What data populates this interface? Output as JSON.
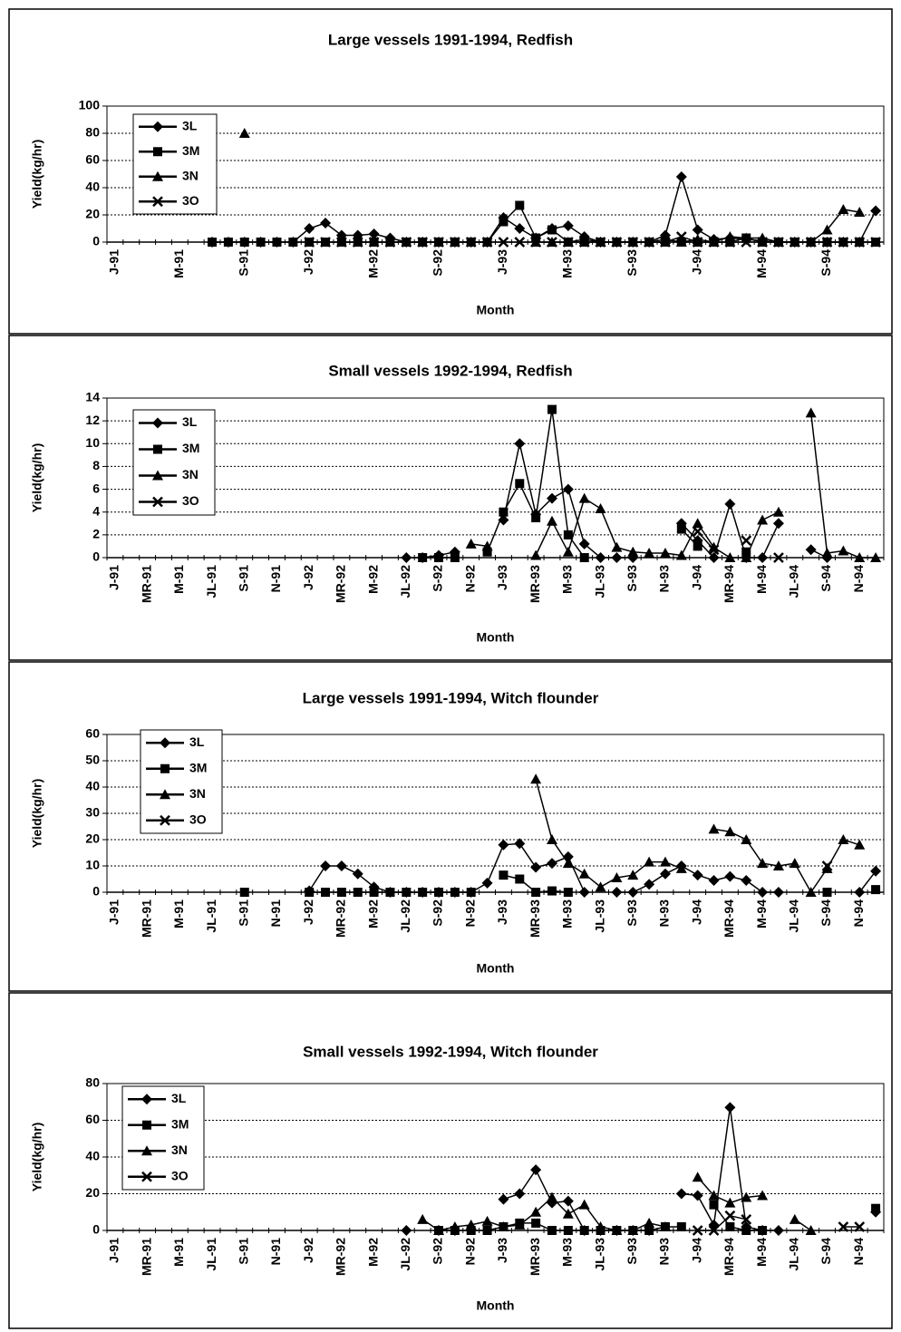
{
  "chart_data": [
    {
      "type": "line",
      "title": "Large vessels 1991-1994, Redfish",
      "x_label": "Month",
      "y_label": "Yield(kg/hr)",
      "categories": [
        "J-91",
        null,
        null,
        null,
        "M-91",
        null,
        null,
        null,
        "S-91",
        null,
        null,
        null,
        "J-92",
        null,
        null,
        null,
        "M-92",
        null,
        null,
        null,
        "S-92",
        null,
        null,
        null,
        "J-93",
        null,
        null,
        null,
        "M-93",
        null,
        null,
        null,
        "S-93",
        null,
        null,
        null,
        "J-94",
        null,
        null,
        null,
        "M-94",
        null,
        null,
        null,
        "S-94",
        null,
        null,
        null
      ],
      "ylim": [
        0,
        100
      ],
      "yticks": [
        0,
        20,
        40,
        60,
        80,
        100
      ],
      "grid": true,
      "legend": "upper left",
      "series": [
        {
          "name": "3L",
          "color": "#000000",
          "values": [
            null,
            null,
            null,
            null,
            null,
            null,
            0,
            0,
            0,
            0,
            0,
            0,
            10,
            14,
            5,
            5,
            6,
            3,
            0,
            0,
            0,
            0,
            0,
            0,
            18,
            10,
            3,
            10,
            12,
            4,
            0,
            0,
            0,
            0,
            5,
            48,
            9,
            2,
            3,
            2,
            1,
            0,
            0,
            0,
            0,
            0,
            0,
            23
          ]
        },
        {
          "name": "3M",
          "color": "#000000",
          "values": [
            null,
            null,
            null,
            null,
            null,
            null,
            0,
            0,
            0,
            0,
            0,
            0,
            0,
            0,
            0,
            0,
            0,
            0,
            0,
            0,
            0,
            0,
            0,
            0,
            15,
            27,
            3,
            9,
            0,
            0,
            0,
            0,
            0,
            0,
            0,
            0,
            0,
            0,
            0,
            3,
            0,
            0,
            0,
            0,
            0,
            0,
            0,
            0
          ]
        },
        {
          "name": "3N",
          "color": "#000000",
          "values": [
            null,
            null,
            null,
            null,
            null,
            null,
            null,
            null,
            80,
            null,
            null,
            null,
            null,
            null,
            null,
            null,
            null,
            null,
            null,
            null,
            null,
            null,
            null,
            null,
            null,
            null,
            0,
            0,
            0,
            2,
            0,
            0,
            0,
            0,
            2,
            0,
            2,
            0,
            4,
            3,
            3,
            0,
            0,
            0,
            9,
            24,
            22,
            null
          ]
        },
        {
          "name": "3O",
          "color": "#000000",
          "values": [
            null,
            null,
            null,
            null,
            null,
            null,
            null,
            null,
            null,
            null,
            null,
            null,
            0,
            0,
            0,
            0,
            0,
            0,
            0,
            0,
            0,
            0,
            0,
            0,
            0,
            0,
            0,
            0,
            0,
            0,
            0,
            0,
            0,
            0,
            0,
            4,
            0,
            0,
            0,
            0,
            0,
            0,
            0,
            0,
            0,
            0,
            0,
            0
          ]
        }
      ]
    },
    {
      "type": "line",
      "title": "Small vessels 1992-1994, Redfish",
      "x_label": "Month",
      "y_label": "Yield(kg/hr)",
      "categories": [
        "J-91",
        null,
        "MR-91",
        null,
        "M-91",
        null,
        "JL-91",
        null,
        "S-91",
        null,
        "N-91",
        null,
        "J-92",
        null,
        "MR-92",
        null,
        "M-92",
        null,
        "JL-92",
        null,
        "S-92",
        null,
        "N-92",
        null,
        "J-93",
        null,
        "MR-93",
        null,
        "M-93",
        null,
        "JL-93",
        null,
        "S-93",
        null,
        "N-93",
        null,
        "J-94",
        null,
        "MR-94",
        null,
        "M-94",
        null,
        "JL-94",
        null,
        "S-94",
        null,
        "N-94",
        null
      ],
      "ylim": [
        0,
        14
      ],
      "yticks": [
        0,
        2,
        4,
        6,
        8,
        10,
        12,
        14
      ],
      "grid": true,
      "legend": "upper left",
      "series": [
        {
          "name": "3L",
          "color": "#000000",
          "values": [
            null,
            null,
            null,
            null,
            null,
            null,
            null,
            null,
            null,
            null,
            null,
            null,
            null,
            null,
            null,
            null,
            null,
            null,
            0,
            0,
            0.2,
            0.5,
            null,
            null,
            3.3,
            10,
            3.8,
            5.2,
            6,
            1.2,
            0,
            0,
            0,
            null,
            null,
            3,
            1.5,
            0,
            4.7,
            0,
            0,
            3,
            null,
            0.7,
            0,
            null,
            null,
            null
          ]
        },
        {
          "name": "3M",
          "color": "#000000",
          "values": [
            null,
            null,
            null,
            null,
            null,
            null,
            null,
            null,
            null,
            null,
            null,
            null,
            null,
            null,
            null,
            null,
            null,
            null,
            null,
            0,
            0,
            0,
            null,
            0.5,
            4,
            6.5,
            3.5,
            13,
            2,
            0,
            null,
            null,
            null,
            null,
            null,
            2.5,
            1,
            null,
            null,
            0.5,
            null,
            null,
            null,
            null,
            null,
            null,
            null,
            null
          ]
        },
        {
          "name": "3N",
          "color": "#000000",
          "values": [
            null,
            null,
            null,
            null,
            null,
            null,
            null,
            null,
            null,
            null,
            null,
            null,
            null,
            null,
            null,
            null,
            null,
            null,
            null,
            null,
            null,
            null,
            1.2,
            1,
            null,
            null,
            0.2,
            3.2,
            0.5,
            5.2,
            4.3,
            0.9,
            0.5,
            0.4,
            0.4,
            0.2,
            3,
            0.9,
            0,
            0,
            3.3,
            4,
            null,
            12.7,
            0.4,
            0.6,
            0,
            0
          ]
        },
        {
          "name": "3O",
          "color": "#000000",
          "values": [
            null,
            null,
            null,
            null,
            null,
            null,
            null,
            null,
            null,
            null,
            null,
            null,
            null,
            null,
            null,
            null,
            null,
            null,
            null,
            null,
            null,
            null,
            null,
            null,
            null,
            null,
            null,
            null,
            null,
            null,
            null,
            null,
            null,
            null,
            null,
            null,
            2.3,
            0.7,
            null,
            1.5,
            null,
            0,
            null,
            null,
            null,
            null,
            null,
            null
          ]
        }
      ]
    },
    {
      "type": "line",
      "title": "Large vessels 1991-1994, Witch flounder",
      "x_label": "Month",
      "y_label": "Yield(kg/hr)",
      "categories": [
        "J-91",
        null,
        "MR-91",
        null,
        "M-91",
        null,
        "JL-91",
        null,
        "S-91",
        null,
        "N-91",
        null,
        "J-92",
        null,
        "MR-92",
        null,
        "M-92",
        null,
        "JL-92",
        null,
        "S-92",
        null,
        "N-92",
        null,
        "J-93",
        null,
        "MR-93",
        null,
        "M-93",
        null,
        "JL-93",
        null,
        "S-93",
        null,
        "N-93",
        null,
        "J-94",
        null,
        "MR-94",
        null,
        "M-94",
        null,
        "JL-94",
        null,
        "S-94",
        null,
        "N-94",
        null
      ],
      "ylim": [
        0,
        60
      ],
      "yticks": [
        0,
        10,
        20,
        30,
        40,
        50,
        60
      ],
      "grid": true,
      "legend": "upper left",
      "series": [
        {
          "name": "3L",
          "color": "#000000",
          "values": [
            null,
            null,
            null,
            null,
            null,
            null,
            null,
            null,
            null,
            null,
            null,
            null,
            0.5,
            10,
            10,
            7,
            2,
            0,
            0,
            0,
            0,
            0,
            0,
            3.5,
            18,
            18.5,
            9.5,
            11,
            13.5,
            0,
            null,
            0,
            0,
            3,
            7,
            10,
            6.5,
            4.5,
            6,
            4.5,
            0,
            0,
            null,
            null,
            null,
            null,
            0,
            8
          ]
        },
        {
          "name": "3M",
          "color": "#000000",
          "values": [
            null,
            null,
            null,
            null,
            null,
            null,
            null,
            null,
            0,
            null,
            null,
            null,
            0,
            0,
            0,
            0,
            0,
            0,
            0,
            0,
            0,
            0,
            0,
            null,
            6.5,
            5,
            0,
            0.5,
            0,
            null,
            null,
            null,
            null,
            null,
            null,
            null,
            null,
            null,
            null,
            null,
            null,
            null,
            null,
            null,
            0,
            null,
            null,
            1
          ]
        },
        {
          "name": "3N",
          "color": "#000000",
          "values": [
            null,
            null,
            null,
            null,
            null,
            null,
            null,
            null,
            null,
            null,
            null,
            null,
            null,
            null,
            null,
            null,
            null,
            null,
            null,
            null,
            null,
            null,
            null,
            null,
            null,
            null,
            43,
            20,
            11,
            7,
            2,
            5.5,
            6.5,
            11.5,
            11.5,
            9,
            null,
            24,
            23,
            20,
            11,
            10,
            11,
            0,
            9,
            20,
            18,
            null
          ]
        },
        {
          "name": "3O",
          "color": "#000000",
          "values": [
            null,
            null,
            null,
            null,
            null,
            null,
            null,
            null,
            null,
            null,
            null,
            null,
            null,
            null,
            null,
            null,
            null,
            null,
            null,
            null,
            null,
            null,
            null,
            null,
            null,
            null,
            null,
            null,
            null,
            null,
            null,
            null,
            null,
            null,
            null,
            null,
            null,
            null,
            null,
            null,
            null,
            null,
            null,
            null,
            10,
            null,
            null,
            null
          ]
        }
      ]
    },
    {
      "type": "line",
      "title": "Small vessels 1992-1994, Witch flounder",
      "x_label": "Month",
      "y_label": "Yield(kg/hr)",
      "categories": [
        "J-91",
        null,
        "MR-91",
        null,
        "M-91",
        null,
        "JL-91",
        null,
        "S-91",
        null,
        "N-91",
        null,
        "J-92",
        null,
        "MR-92",
        null,
        "M-92",
        null,
        "JL-92",
        null,
        "S-92",
        null,
        "N-92",
        null,
        "J-93",
        null,
        "MR-93",
        null,
        "M-93",
        null,
        "JL-93",
        null,
        "S-93",
        null,
        "N-93",
        null,
        "J-94",
        null,
        "MR-94",
        null,
        "M-94",
        null,
        "JL-94",
        null,
        "S-94",
        null,
        "N-94",
        null
      ],
      "ylim": [
        0,
        80
      ],
      "yticks": [
        0,
        20,
        40,
        60,
        80
      ],
      "grid": true,
      "legend": "upper left",
      "series": [
        {
          "name": "3L",
          "color": "#000000",
          "values": [
            null,
            null,
            null,
            null,
            null,
            null,
            null,
            null,
            null,
            null,
            null,
            null,
            null,
            null,
            null,
            null,
            null,
            null,
            0,
            null,
            0,
            0,
            null,
            null,
            17,
            20,
            33,
            15,
            16,
            0,
            0,
            0,
            0,
            0,
            null,
            20,
            19,
            3,
            67,
            2,
            0,
            0,
            null,
            null,
            null,
            null,
            null,
            10
          ]
        },
        {
          "name": "3M",
          "color": "#000000",
          "values": [
            null,
            null,
            null,
            null,
            null,
            null,
            null,
            null,
            null,
            null,
            null,
            null,
            null,
            null,
            null,
            null,
            null,
            null,
            null,
            null,
            0,
            0,
            0,
            0,
            2,
            4,
            4,
            0,
            0,
            0,
            0,
            0,
            0,
            0,
            2,
            2,
            null,
            14,
            2,
            0,
            0,
            null,
            null,
            null,
            null,
            null,
            null,
            12
          ]
        },
        {
          "name": "3N",
          "color": "#000000",
          "values": [
            null,
            null,
            null,
            null,
            null,
            null,
            null,
            null,
            null,
            null,
            null,
            null,
            null,
            null,
            null,
            null,
            null,
            null,
            null,
            6,
            0,
            2,
            3,
            5,
            2,
            3,
            10,
            18,
            9,
            14,
            2,
            0,
            0,
            4,
            2,
            null,
            29,
            19,
            15,
            18,
            19,
            null,
            6,
            0,
            null,
            null,
            null,
            null
          ]
        },
        {
          "name": "3O",
          "color": "#000000",
          "values": [
            null,
            null,
            null,
            null,
            null,
            null,
            null,
            null,
            null,
            null,
            null,
            null,
            null,
            null,
            null,
            null,
            null,
            null,
            null,
            null,
            null,
            null,
            null,
            null,
            null,
            null,
            null,
            null,
            null,
            null,
            null,
            null,
            null,
            null,
            null,
            null,
            0,
            0,
            8,
            6,
            null,
            null,
            null,
            null,
            null,
            2,
            2,
            null
          ]
        }
      ]
    }
  ]
}
